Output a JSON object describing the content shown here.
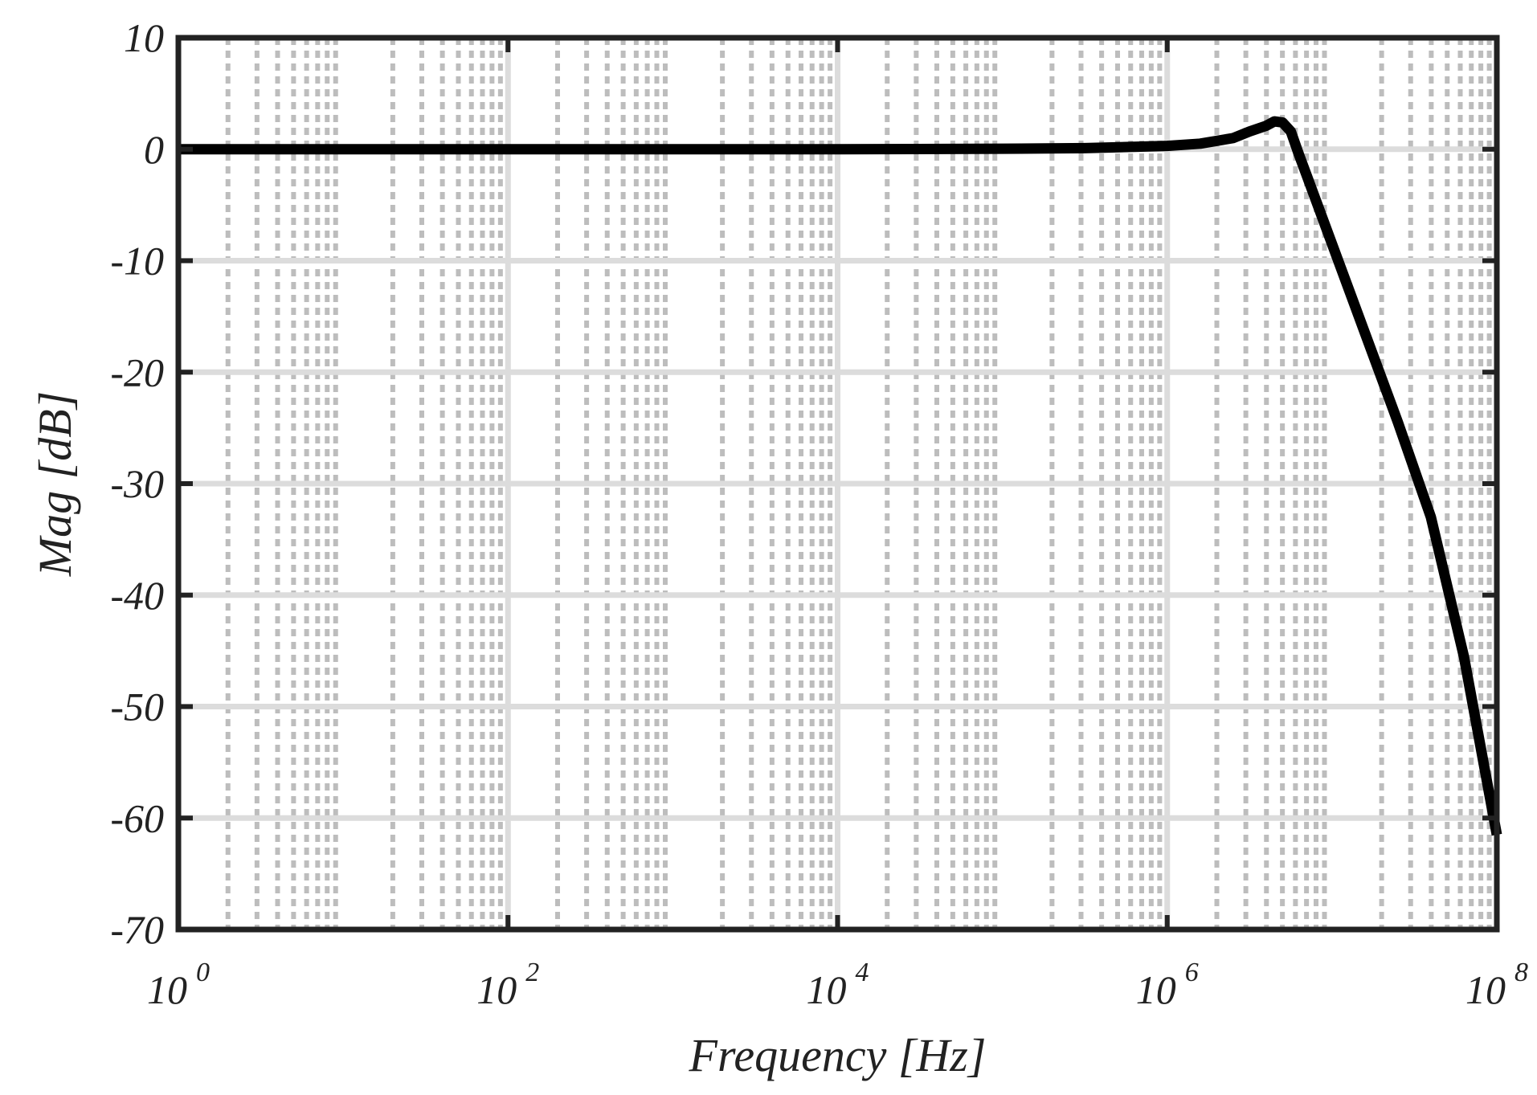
{
  "chart_data": {
    "type": "line",
    "xlabel": "Frequency [Hz]",
    "ylabel": "Mag [dB]",
    "xscale": "log",
    "xlim": [
      1,
      100000000
    ],
    "ylim": [
      -70,
      10
    ],
    "grid": true,
    "x_ticks": [
      {
        "base": "10",
        "exp": "0",
        "value": 1
      },
      {
        "base": "10",
        "exp": "2",
        "value": 100
      },
      {
        "base": "10",
        "exp": "4",
        "value": 10000
      },
      {
        "base": "10",
        "exp": "6",
        "value": 1000000
      },
      {
        "base": "10",
        "exp": "8",
        "value": 100000000
      }
    ],
    "y_ticks": [
      "10",
      "0",
      "-10",
      "-20",
      "-30",
      "-40",
      "-50",
      "-60",
      "-70"
    ],
    "series": [
      {
        "color": "#000000",
        "x": [
          1,
          100,
          10000,
          100000,
          316228,
          1000000,
          1584893,
          2511886,
          3162278,
          3981072,
          4466836,
          5011872,
          5623413,
          6309573,
          7079458,
          7943282,
          8912509,
          10000000,
          15848932,
          25118864,
          39810717,
          63095734,
          100000000
        ],
        "y": [
          0,
          0,
          0,
          0.05,
          0.1,
          0.3,
          0.5,
          1.0,
          1.6,
          2.1,
          2.5,
          2.4,
          1.6,
          -0.5,
          -2.5,
          -4.5,
          -6.5,
          -8.5,
          -16.5,
          -24.5,
          -33,
          -45.5,
          -61.5
        ]
      }
    ]
  }
}
